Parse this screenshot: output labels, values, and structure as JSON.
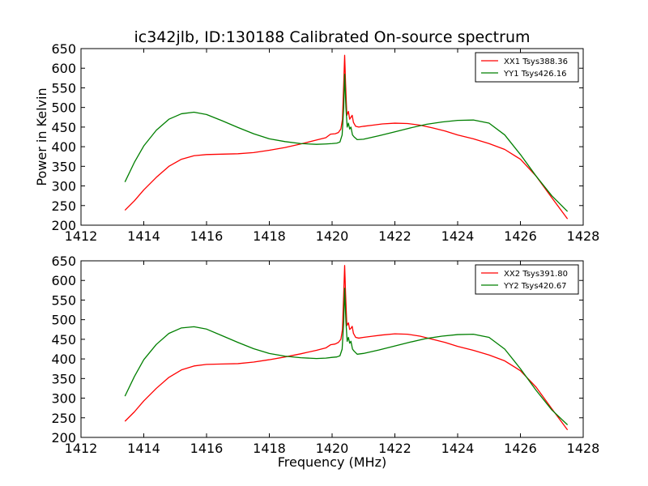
{
  "figure": {
    "title": "ic342jlb, ID:130188 Calibrated On-source spectrum"
  },
  "chart_data": [
    {
      "type": "line",
      "title": "ic342jlb, ID:130188 Calibrated On-source spectrum",
      "xlabel": "",
      "ylabel": "Power in Kelvin",
      "xlim": [
        1412,
        1428
      ],
      "ylim": [
        200,
        650
      ],
      "xticks": [
        "1412",
        "1414",
        "1416",
        "1418",
        "1420",
        "1422",
        "1424",
        "1426",
        "1428"
      ],
      "yticks": [
        "200",
        "250",
        "300",
        "350",
        "400",
        "450",
        "500",
        "550",
        "600",
        "650"
      ],
      "grid": false,
      "legend_position": "top-right",
      "series": [
        {
          "name": "XX1 Tsys388.36",
          "color": "#ff0000",
          "x": [
            1413.4,
            1413.7,
            1414.0,
            1414.4,
            1414.8,
            1415.2,
            1415.6,
            1416.0,
            1416.5,
            1417.0,
            1417.5,
            1418.0,
            1418.5,
            1419.0,
            1419.5,
            1419.8,
            1419.95,
            1420.1,
            1420.2,
            1420.28,
            1420.33,
            1420.37,
            1420.4,
            1420.43,
            1420.47,
            1420.52,
            1420.56,
            1420.6,
            1420.64,
            1420.68,
            1420.75,
            1420.85,
            1421.0,
            1421.3,
            1421.6,
            1422.0,
            1422.4,
            1422.8,
            1423.2,
            1423.6,
            1424.0,
            1424.5,
            1425.0,
            1425.5,
            1426.0,
            1426.5,
            1427.0,
            1427.5
          ],
          "y": [
            238,
            262,
            290,
            322,
            350,
            368,
            377,
            380,
            381,
            382,
            385,
            391,
            398,
            407,
            417,
            423,
            432,
            433,
            436,
            445,
            470,
            560,
            633,
            560,
            480,
            490,
            470,
            475,
            480,
            462,
            452,
            450,
            452,
            455,
            458,
            460,
            459,
            455,
            448,
            440,
            430,
            420,
            408,
            393,
            368,
            325,
            270,
            216
          ]
        },
        {
          "name": "YY1 Tsys426.16",
          "color": "#007f00",
          "x": [
            1413.4,
            1413.7,
            1414.0,
            1414.4,
            1414.8,
            1415.2,
            1415.6,
            1416.0,
            1416.5,
            1417.0,
            1417.5,
            1418.0,
            1418.5,
            1419.0,
            1419.5,
            1419.8,
            1420.0,
            1420.15,
            1420.25,
            1420.32,
            1420.37,
            1420.4,
            1420.44,
            1420.48,
            1420.52,
            1420.56,
            1420.6,
            1420.65,
            1420.7,
            1420.8,
            1421.0,
            1421.5,
            1422.0,
            1422.5,
            1423.0,
            1423.5,
            1424.0,
            1424.5,
            1425.0,
            1425.5,
            1426.0,
            1426.5,
            1427.0,
            1427.5
          ],
          "y": [
            310,
            360,
            402,
            442,
            470,
            484,
            488,
            482,
            466,
            449,
            433,
            420,
            413,
            408,
            406,
            407,
            408,
            409,
            412,
            430,
            500,
            585,
            500,
            450,
            460,
            445,
            450,
            430,
            425,
            418,
            419,
            428,
            438,
            448,
            457,
            463,
            467,
            468,
            460,
            430,
            380,
            325,
            275,
            235
          ]
        }
      ]
    },
    {
      "type": "line",
      "title": "",
      "xlabel": "Frequency (MHz)",
      "ylabel": "",
      "xlim": [
        1412,
        1428
      ],
      "ylim": [
        200,
        650
      ],
      "xticks": [
        "1412",
        "1414",
        "1416",
        "1418",
        "1420",
        "1422",
        "1424",
        "1426",
        "1428"
      ],
      "yticks": [
        "200",
        "250",
        "300",
        "350",
        "400",
        "450",
        "500",
        "550",
        "600",
        "650"
      ],
      "grid": false,
      "legend_position": "top-right",
      "series": [
        {
          "name": "XX2 Tsys391.80",
          "color": "#ff0000",
          "x": [
            1413.4,
            1413.7,
            1414.0,
            1414.4,
            1414.8,
            1415.2,
            1415.6,
            1416.0,
            1416.5,
            1417.0,
            1417.5,
            1418.0,
            1418.5,
            1419.0,
            1419.5,
            1419.8,
            1419.95,
            1420.1,
            1420.2,
            1420.28,
            1420.33,
            1420.37,
            1420.4,
            1420.43,
            1420.47,
            1420.52,
            1420.56,
            1420.6,
            1420.64,
            1420.68,
            1420.75,
            1420.85,
            1421.0,
            1421.3,
            1421.6,
            1422.0,
            1422.4,
            1422.8,
            1423.2,
            1423.6,
            1424.0,
            1424.5,
            1425.0,
            1425.5,
            1426.0,
            1426.5,
            1427.0,
            1427.5
          ],
          "y": [
            241,
            265,
            293,
            325,
            353,
            372,
            382,
            386,
            387,
            388,
            392,
            398,
            405,
            413,
            422,
            428,
            436,
            438,
            442,
            450,
            475,
            565,
            638,
            565,
            485,
            492,
            475,
            478,
            483,
            465,
            455,
            453,
            455,
            458,
            461,
            464,
            463,
            458,
            450,
            442,
            432,
            422,
            410,
            395,
            370,
            328,
            273,
            219
          ]
        },
        {
          "name": "YY2 Tsys420.67",
          "color": "#007f00",
          "x": [
            1413.4,
            1413.7,
            1414.0,
            1414.4,
            1414.8,
            1415.2,
            1415.6,
            1416.0,
            1416.5,
            1417.0,
            1417.5,
            1418.0,
            1418.5,
            1419.0,
            1419.5,
            1419.8,
            1420.0,
            1420.15,
            1420.25,
            1420.32,
            1420.37,
            1420.4,
            1420.44,
            1420.48,
            1420.52,
            1420.56,
            1420.6,
            1420.65,
            1420.7,
            1420.8,
            1421.0,
            1421.5,
            1422.0,
            1422.5,
            1423.0,
            1423.5,
            1424.0,
            1424.5,
            1425.0,
            1425.5,
            1426.0,
            1426.5,
            1427.0,
            1427.5
          ],
          "y": [
            305,
            355,
            398,
            437,
            465,
            479,
            482,
            476,
            459,
            442,
            426,
            414,
            407,
            403,
            401,
            402,
            404,
            405,
            408,
            425,
            495,
            580,
            495,
            445,
            455,
            440,
            445,
            425,
            420,
            412,
            414,
            423,
            433,
            443,
            452,
            458,
            462,
            463,
            455,
            425,
            375,
            320,
            270,
            232
          ]
        }
      ]
    }
  ]
}
